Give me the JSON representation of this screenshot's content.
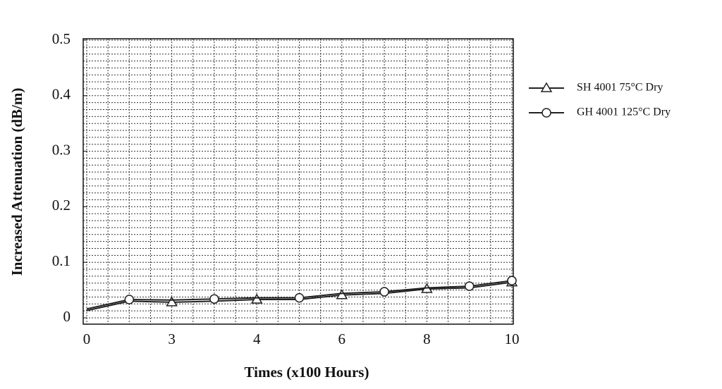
{
  "chart_data": {
    "type": "line",
    "x_label": "Times (x100 Hours)",
    "y_label": "Increased Attenuation (dB/m)",
    "categories": [
      "0",
      null,
      "3",
      null,
      "4",
      null,
      "6",
      null,
      "8",
      null,
      "10"
    ],
    "ylim": [
      0,
      0.5
    ],
    "yticks": [
      0,
      0.1,
      0.2,
      0.3,
      0.4,
      0.5
    ],
    "grid": true,
    "legend": "right",
    "series": [
      {
        "name": "SH 4001 75°C Dry",
        "color": "#222222",
        "marker": "triangle",
        "markevery": [
          2,
          4,
          6,
          8,
          10
        ],
        "values": [
          0.013,
          0.03,
          0.028,
          0.03,
          0.033,
          0.033,
          0.041,
          0.044,
          0.052,
          0.054,
          0.064
        ]
      },
      {
        "name": "GH 4001 125°C Dry",
        "color": "#222222",
        "marker": "circle",
        "markevery": [
          1,
          3,
          5,
          7,
          9,
          10
        ],
        "values": [
          0.016,
          0.033,
          0.032,
          0.034,
          0.036,
          0.036,
          0.044,
          0.047,
          0.054,
          0.057,
          0.067
        ]
      }
    ]
  }
}
